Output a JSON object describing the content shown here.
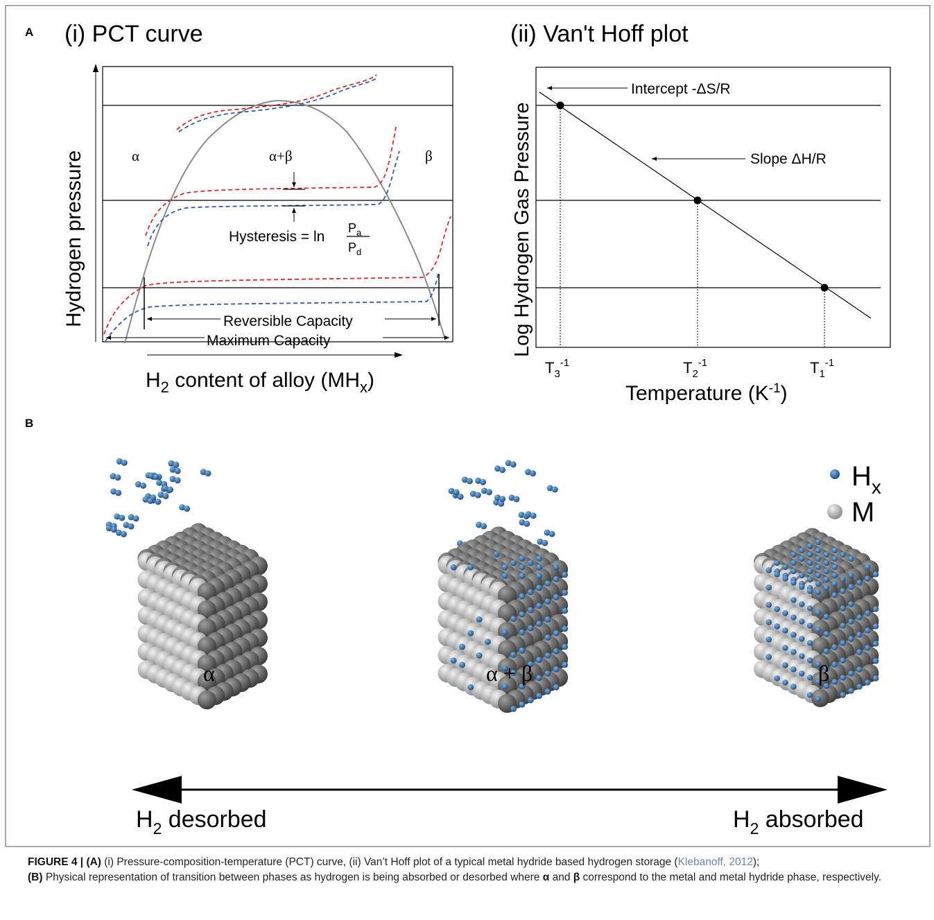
{
  "panel_a": {
    "label": "A",
    "pct": {
      "title": "(i) PCT curve",
      "ylabel": "Hydrogen pressure",
      "xlabel_main": "H",
      "xlabel_sub": "2",
      "xlabel_rest": " content of alloy (MH",
      "xlabel_sub2": "x",
      "xlabel_end": ")",
      "phase_alpha": "α",
      "phase_mix": "α+β",
      "phase_beta": "β",
      "hysteresis_text": "Hysteresis = ln",
      "hysteresis_num": "P",
      "hysteresis_num_sub": "a",
      "hysteresis_den": "P",
      "hysteresis_den_sub": "d",
      "reversible": "Reversible Capacity",
      "maximum": "Maximum Capacity"
    },
    "vanthoff": {
      "title": "(ii) Van't Hoff plot",
      "ylabel": "Log Hydrogen Gas Pressure",
      "xlabel": "Temperature (K",
      "xlabel_sup": "-1",
      "xlabel_end": ")",
      "intercept": "Intercept -ΔS/R",
      "slope": "Slope ΔH/R",
      "ticks": [
        {
          "base": "T",
          "sub": "3",
          "sup": "-1"
        },
        {
          "base": "T",
          "sub": "2",
          "sup": "-1"
        },
        {
          "base": "T",
          "sub": "1",
          "sup": "-1"
        }
      ]
    }
  },
  "panel_b": {
    "label": "B",
    "legend_h": "H",
    "legend_h_sub": "x",
    "legend_m": "M",
    "phase_alpha": "α",
    "phase_mix": "α + β",
    "phase_beta": "β",
    "desorbed_h": "H",
    "desorbed_sub": "2",
    "desorbed_text": " desorbed",
    "absorbed_h": "H",
    "absorbed_sub": "2",
    "absorbed_text": " absorbed"
  },
  "caption": {
    "fig": "FIGURE 4 | ",
    "a_label": "(A)",
    "a_text": " (i) Pressure-composition-temperature (PCT) curve, (ii) Van’t Hoff plot of a typical metal hydride based hydrogen storage (",
    "cite": "Klebanoff, 2012",
    "a_end": ");",
    "b_label": "(B)",
    "b_text1": " Physical representation of transition between phases as hydrogen is being absorbed or desorbed where ",
    "alpha": "α",
    "b_text2": " and ",
    "beta": "β",
    "b_text3": " correspond to the metal and metal hydride phase, respectively."
  },
  "colors": {
    "red_dash": "#d62c2c",
    "blue_dash": "#3558a8",
    "dome": "#8a8a8a",
    "h_atom": "#2f6fb0",
    "m_dark": "#5a5a5a",
    "m_light": "#bdbdbd"
  }
}
